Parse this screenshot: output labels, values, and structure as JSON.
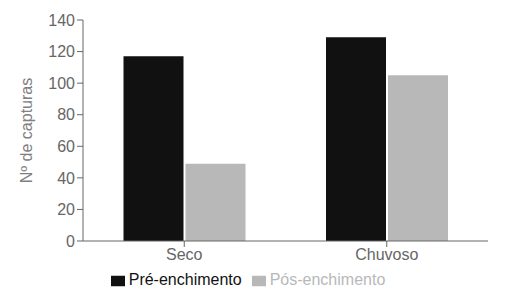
{
  "chart_data": {
    "type": "bar",
    "categories": [
      "Seco",
      "Chuvoso"
    ],
    "series": [
      {
        "name": "Pré-enchimento",
        "color": "#111111",
        "values": [
          117,
          129
        ]
      },
      {
        "name": "Pós-enchimento",
        "color": "#b8b8b8",
        "values": [
          49,
          105
        ]
      }
    ],
    "ylabel": "Nº de capturas",
    "ylim": [
      0,
      140
    ],
    "yticks": [
      0,
      20,
      40,
      60,
      80,
      100,
      120,
      140
    ],
    "grid": false,
    "legend": "bottom"
  }
}
